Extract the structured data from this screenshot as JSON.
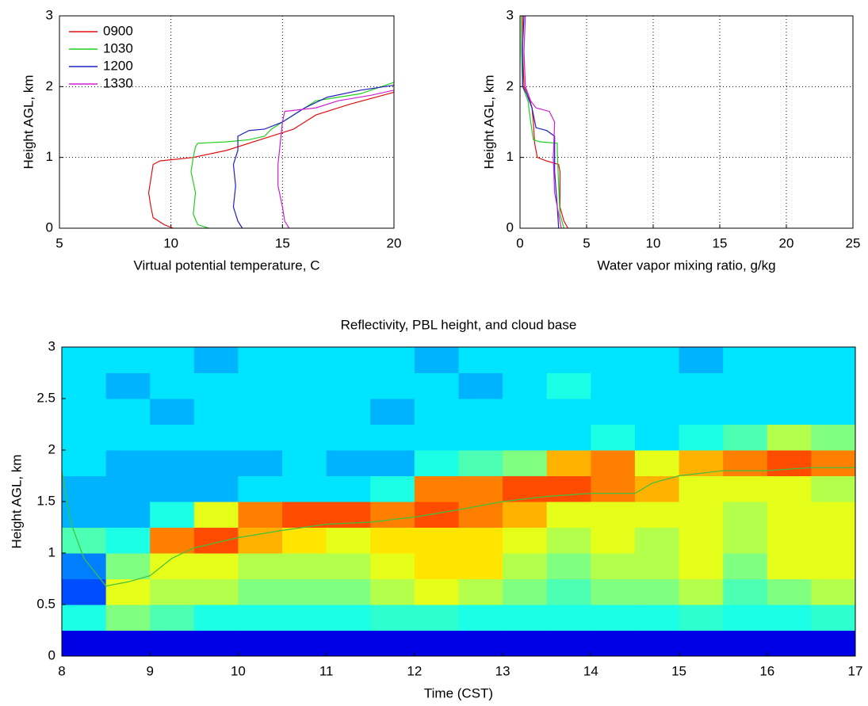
{
  "chart_data": [
    {
      "type": "line",
      "xlabel": "Virtual potential temperature, C",
      "ylabel": "Height AGL, km",
      "xlim": [
        5,
        20
      ],
      "ylim": [
        0,
        3
      ],
      "xticks": [
        5,
        10,
        15,
        20
      ],
      "yticks": [
        0,
        1,
        2,
        3
      ],
      "grid": true,
      "legend": "upper left",
      "series": [
        {
          "name": "0900",
          "color": "#e01010",
          "x": [
            10.1,
            9.7,
            9.2,
            9.1,
            9.0,
            9.1,
            9.2,
            9.5,
            11,
            12.5,
            14,
            15.5,
            16.5,
            18,
            20
          ],
          "y": [
            0,
            0.05,
            0.15,
            0.3,
            0.5,
            0.7,
            0.9,
            0.95,
            1.0,
            1.1,
            1.25,
            1.4,
            1.6,
            1.75,
            1.92
          ]
        },
        {
          "name": "1030",
          "color": "#20d020",
          "x": [
            11.7,
            11.2,
            11.0,
            11.1,
            10.9,
            11.0,
            11.1,
            11.2,
            12.5,
            13.5,
            14.2,
            14.5,
            15.5,
            16.5,
            18.5,
            20
          ],
          "y": [
            0,
            0.05,
            0.2,
            0.5,
            0.8,
            1.0,
            1.15,
            1.2,
            1.22,
            1.25,
            1.3,
            1.4,
            1.6,
            1.8,
            1.9,
            2.06
          ]
        },
        {
          "name": "1200",
          "color": "#2020c0",
          "x": [
            13.2,
            13.0,
            12.8,
            12.9,
            12.8,
            13.0,
            13.0,
            13.5,
            14.2,
            15,
            16,
            17,
            18.5,
            20
          ],
          "y": [
            0,
            0.1,
            0.3,
            0.6,
            0.9,
            1.1,
            1.3,
            1.38,
            1.4,
            1.5,
            1.7,
            1.85,
            1.95,
            2.02
          ]
        },
        {
          "name": "1330",
          "color": "#d020d0",
          "x": [
            15.3,
            15.1,
            15.0,
            14.8,
            14.8,
            14.9,
            15.0,
            15.1,
            16.5,
            17.5,
            19,
            20
          ],
          "y": [
            0,
            0.1,
            0.3,
            0.6,
            0.9,
            1.2,
            1.5,
            1.65,
            1.7,
            1.8,
            1.88,
            1.95
          ]
        }
      ]
    },
    {
      "type": "line",
      "xlabel": "Water vapor mixing ratio, g/kg",
      "ylabel": "Height AGL, km",
      "xlim": [
        0,
        25
      ],
      "ylim": [
        0,
        3
      ],
      "xticks": [
        0,
        5,
        10,
        15,
        20,
        25
      ],
      "yticks": [
        0,
        1,
        2,
        3
      ],
      "grid": true,
      "series": [
        {
          "color": "#e01010",
          "x": [
            3.6,
            3.3,
            3.0,
            3.0,
            2.9,
            2.0,
            1.3,
            1.1,
            1.0,
            0.9,
            0.6,
            0.3,
            0.2,
            0.2
          ],
          "y": [
            0,
            0.1,
            0.3,
            0.8,
            0.9,
            0.95,
            1.0,
            1.2,
            1.5,
            1.7,
            1.9,
            2.0,
            2.5,
            3.0
          ]
        },
        {
          "color": "#20d020",
          "x": [
            3.3,
            3.0,
            2.9,
            2.8,
            2.8,
            1.5,
            1.0,
            0.8,
            0.6,
            0.2,
            0.1,
            0.1
          ],
          "y": [
            0,
            0.2,
            0.6,
            1.1,
            1.2,
            1.22,
            1.25,
            1.5,
            1.8,
            2.0,
            2.5,
            3
          ]
        },
        {
          "color": "#2020c0",
          "x": [
            2.9,
            2.8,
            2.6,
            2.6,
            2.0,
            1.2,
            0.9,
            0.5,
            0.2,
            0.2,
            0.3
          ],
          "y": [
            0,
            0.3,
            0.8,
            1.3,
            1.38,
            1.42,
            1.7,
            1.9,
            2.0,
            2.6,
            3
          ]
        },
        {
          "color": "#d020d0",
          "x": [
            3.1,
            2.9,
            2.6,
            2.5,
            2.6,
            2.2,
            1.2,
            0.8,
            0.4,
            0.3,
            0.4
          ],
          "y": [
            0,
            0.2,
            0.5,
            1.0,
            1.5,
            1.65,
            1.7,
            1.8,
            2.0,
            2.5,
            3
          ]
        }
      ]
    },
    {
      "type": "heatmap",
      "title": "Reflectivity, PBL height, and cloud base",
      "xlabel": "Time (CST)",
      "ylabel": "Height AGL, km",
      "xlim": [
        8,
        17
      ],
      "ylim": [
        0,
        3
      ],
      "xticks": [
        8,
        9,
        10,
        11,
        12,
        13,
        14,
        15,
        16,
        17
      ],
      "yticks": [
        0,
        0.5,
        1,
        1.5,
        2,
        2.5,
        3
      ],
      "grid": false,
      "colormap": "jet",
      "zlim": [
        0,
        1
      ],
      "xbins": [
        8,
        8.5,
        9,
        9.5,
        10,
        10.5,
        11,
        11.5,
        12,
        12.5,
        13,
        13.5,
        14,
        14.5,
        15,
        15.5,
        16,
        16.5,
        17
      ],
      "ybins": [
        0,
        0.25,
        0.5,
        0.75,
        1.0,
        1.25,
        1.5,
        1.75,
        2.0,
        2.25,
        2.5,
        2.75,
        3.0
      ],
      "z": [
        [
          0.1,
          0.1,
          0.1,
          0.1,
          0.1,
          0.1,
          0.1,
          0.1,
          0.1,
          0.1,
          0.1,
          0.1,
          0.1,
          0.1,
          0.1,
          0.1,
          0.1,
          0.1
        ],
        [
          0.4,
          0.5,
          0.45,
          0.4,
          0.4,
          0.4,
          0.4,
          0.42,
          0.42,
          0.4,
          0.4,
          0.4,
          0.4,
          0.4,
          0.42,
          0.4,
          0.4,
          0.42
        ],
        [
          0.2,
          0.6,
          0.55,
          0.55,
          0.5,
          0.5,
          0.5,
          0.55,
          0.6,
          0.55,
          0.5,
          0.45,
          0.5,
          0.5,
          0.55,
          0.45,
          0.5,
          0.55
        ],
        [
          0.25,
          0.5,
          0.6,
          0.6,
          0.55,
          0.55,
          0.55,
          0.6,
          0.65,
          0.65,
          0.55,
          0.5,
          0.55,
          0.55,
          0.6,
          0.5,
          0.6,
          0.6
        ],
        [
          0.45,
          0.4,
          0.75,
          0.8,
          0.7,
          0.65,
          0.6,
          0.65,
          0.65,
          0.65,
          0.6,
          0.55,
          0.6,
          0.55,
          0.6,
          0.55,
          0.6,
          0.6
        ],
        [
          0.3,
          0.3,
          0.4,
          0.6,
          0.75,
          0.8,
          0.8,
          0.75,
          0.8,
          0.75,
          0.7,
          0.6,
          0.6,
          0.6,
          0.6,
          0.55,
          0.6,
          0.6
        ],
        [
          0.3,
          0.3,
          0.3,
          0.3,
          0.35,
          0.35,
          0.35,
          0.4,
          0.75,
          0.75,
          0.8,
          0.8,
          0.75,
          0.7,
          0.6,
          0.6,
          0.6,
          0.55
        ],
        [
          0.35,
          0.3,
          0.3,
          0.3,
          0.3,
          0.35,
          0.3,
          0.3,
          0.4,
          0.45,
          0.5,
          0.7,
          0.75,
          0.6,
          0.7,
          0.75,
          0.8,
          0.75
        ],
        [
          0.35,
          0.35,
          0.35,
          0.35,
          0.35,
          0.35,
          0.35,
          0.35,
          0.35,
          0.35,
          0.35,
          0.35,
          0.4,
          0.35,
          0.4,
          0.45,
          0.55,
          0.5
        ],
        [
          0.35,
          0.35,
          0.3,
          0.35,
          0.35,
          0.35,
          0.35,
          0.3,
          0.35,
          0.35,
          0.35,
          0.35,
          0.35,
          0.35,
          0.35,
          0.35,
          0.35,
          0.35
        ],
        [
          0.35,
          0.3,
          0.35,
          0.35,
          0.35,
          0.35,
          0.35,
          0.35,
          0.35,
          0.3,
          0.35,
          0.4,
          0.35,
          0.35,
          0.35,
          0.35,
          0.35,
          0.35
        ],
        [
          0.35,
          0.35,
          0.35,
          0.3,
          0.35,
          0.35,
          0.35,
          0.35,
          0.3,
          0.35,
          0.35,
          0.35,
          0.35,
          0.35,
          0.3,
          0.35,
          0.35,
          0.35
        ]
      ],
      "series": [
        {
          "color": "#40c040",
          "x": [
            8,
            8.1,
            8.25,
            8.5,
            8.75,
            9,
            9.25,
            9.5,
            10,
            10.5,
            11,
            11.5,
            12,
            12.5,
            13,
            13.5,
            14,
            14.5,
            14.7,
            15,
            15.5,
            16,
            16.5,
            17
          ],
          "values": [
            1.8,
            1.3,
            0.95,
            0.68,
            0.72,
            0.78,
            0.95,
            1.05,
            1.15,
            1.22,
            1.28,
            1.3,
            1.35,
            1.42,
            1.5,
            1.55,
            1.58,
            1.58,
            1.68,
            1.75,
            1.8,
            1.8,
            1.83,
            1.83
          ]
        }
      ]
    }
  ]
}
